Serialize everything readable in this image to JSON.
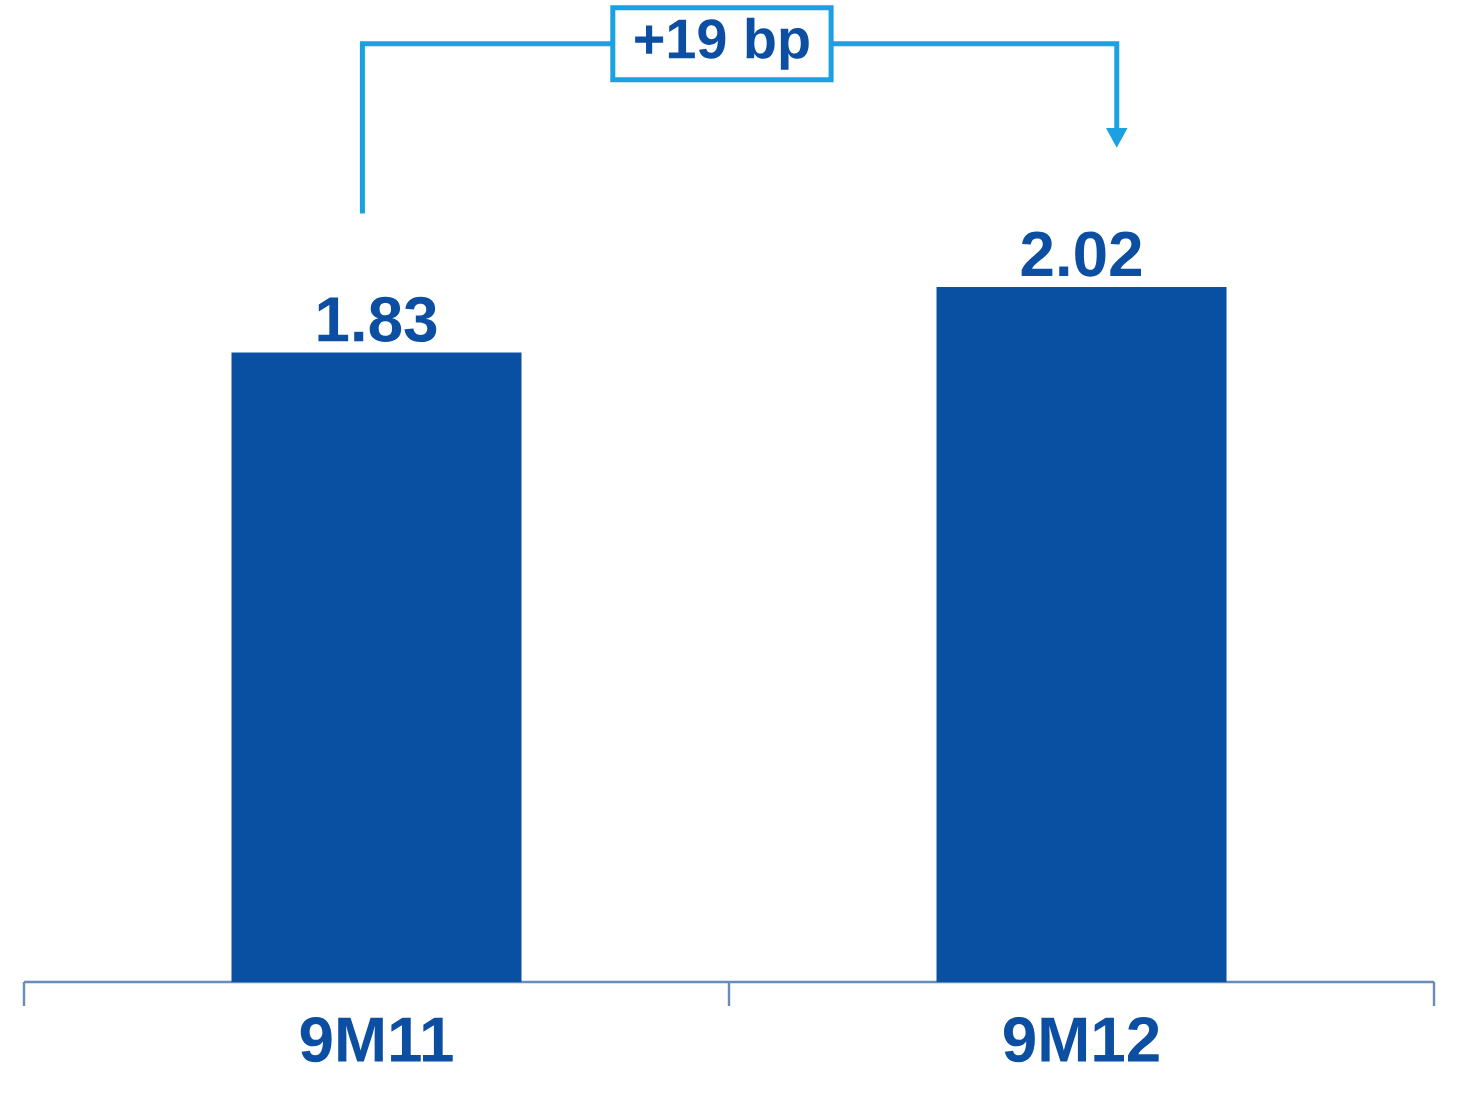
{
  "chart_data": {
    "type": "bar",
    "categories": [
      "9M11",
      "9M12"
    ],
    "values": [
      1.83,
      2.02
    ],
    "color": "#0a50a2",
    "data_labels": true,
    "annotations": [
      "+19 bp"
    ]
  }
}
